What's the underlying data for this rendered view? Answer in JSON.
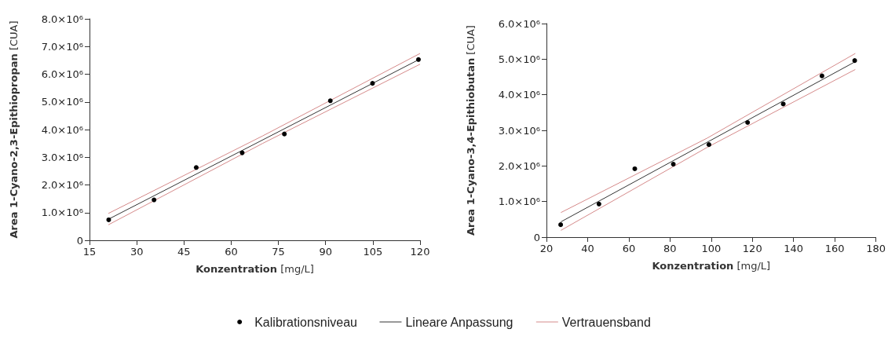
{
  "chart_data": [
    {
      "type": "scatter",
      "xlabel": "Konzentration [mg/L]",
      "ylabel": "Area 1-Cyano-2,3-Epithiopropan [CUA]",
      "xlim": [
        15,
        120
      ],
      "xticks": [
        15,
        30,
        45,
        60,
        75,
        90,
        105,
        120
      ],
      "ylim": [
        0,
        8000000
      ],
      "yticks": [
        {
          "value": 0,
          "label": "0"
        },
        {
          "value": 1000000,
          "label": "1.0×10⁶"
        },
        {
          "value": 2000000,
          "label": "2.0×10⁶"
        },
        {
          "value": 3000000,
          "label": "3.0×10⁶"
        },
        {
          "value": 4000000,
          "label": "4.0×10⁶"
        },
        {
          "value": 5000000,
          "label": "5.0×10⁶"
        },
        {
          "value": 6000000,
          "label": "6.0×10⁶"
        },
        {
          "value": 7000000,
          "label": "7.0×10⁶"
        },
        {
          "value": 8000000,
          "label": "8.0×10⁶"
        }
      ],
      "legend": "bottom",
      "series": [
        {
          "name": "Kalibrationsniveau",
          "marker": "circle",
          "color": "#000000",
          "x": [
            21.1,
            35.5,
            48.9,
            63.5,
            76.9,
            91.5,
            104.9,
            119.5
          ],
          "values": [
            740000,
            1460000,
            2630000,
            3160000,
            3840000,
            5040000,
            5670000,
            6530000
          ]
        },
        {
          "name": "Lineare Anpassung",
          "type": "line",
          "marker": "none",
          "color": "#333333",
          "x": [
            21,
            120
          ],
          "values": [
            760000,
            6550000
          ]
        },
        {
          "name": "Vertrauensband",
          "type": "line",
          "marker": "none",
          "color": "#d58a8a",
          "x": [
            21,
            70,
            120
          ],
          "values": [
            970000,
            3770000,
            6750000
          ]
        },
        {
          "type": "line",
          "marker": "none",
          "color": "#d58a8a",
          "x": [
            21,
            70,
            120
          ],
          "values": [
            560000,
            3500000,
            6360000
          ]
        }
      ]
    },
    {
      "type": "scatter",
      "xlabel": "Konzentration [mg/L]",
      "ylabel": "Area 1-Cyano-3,4-Epithiobutan [CUA]",
      "xlim": [
        20,
        180
      ],
      "xticks": [
        20,
        40,
        60,
        80,
        100,
        120,
        140,
        160,
        180
      ],
      "ylim": [
        0,
        6000000
      ],
      "yticks": [
        {
          "value": 0,
          "label": "0"
        },
        {
          "value": 1000000,
          "label": "1.0×10⁶"
        },
        {
          "value": 2000000,
          "label": "2.0×10⁶"
        },
        {
          "value": 3000000,
          "label": "3.0×10⁶"
        },
        {
          "value": 4000000,
          "label": "4.0×10⁶"
        },
        {
          "value": 5000000,
          "label": "5.0×10⁶"
        },
        {
          "value": 6000000,
          "label": "6.0×10⁶"
        }
      ],
      "series": [
        {
          "marker": "circle",
          "color": "#000000",
          "x": [
            26.9,
            45.5,
            62.9,
            81.6,
            98.9,
            117.7,
            135,
            153.8,
            169.7
          ],
          "values": [
            350000,
            930000,
            1920000,
            2050000,
            2600000,
            3220000,
            3740000,
            4530000,
            4960000
          ]
        },
        {
          "type": "line",
          "marker": "none",
          "color": "#333333",
          "x": [
            27,
            170
          ],
          "values": [
            430000,
            4930000
          ]
        },
        {
          "type": "line",
          "marker": "none",
          "color": "#d58a8a",
          "x": [
            27,
            98,
            170
          ],
          "values": [
            690000,
            2780000,
            5160000
          ]
        },
        {
          "type": "line",
          "marker": "none",
          "color": "#d58a8a",
          "x": [
            27,
            98,
            170
          ],
          "values": [
            190000,
            2520000,
            4710000
          ]
        }
      ]
    }
  ]
}
